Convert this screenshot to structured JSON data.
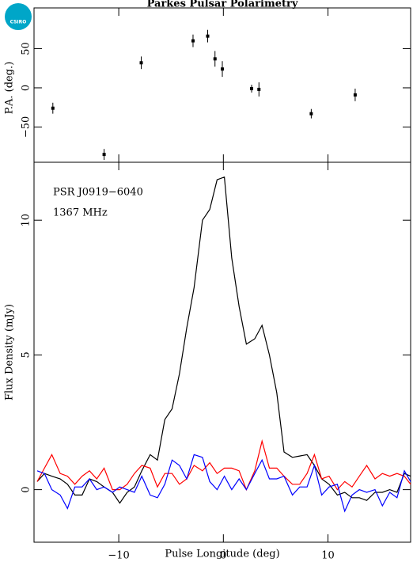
{
  "logo": "CSIRO",
  "chart_data": [
    {
      "type": "scatter",
      "title": "Parkes Pulsar Polarimetry",
      "ylabel": "P.A. (deg.)",
      "x": [
        -16.3,
        -11.4,
        -7.85,
        -2.9,
        -1.5,
        -0.8,
        -0.1,
        2.7,
        3.4,
        8.4,
        12.6
      ],
      "values": [
        -26,
        -85,
        32,
        60,
        66,
        37,
        24,
        -1,
        -2,
        -33,
        -9
      ],
      "yerr": [
        7,
        7,
        8,
        8,
        8,
        10,
        10,
        5,
        9,
        6,
        8
      ],
      "color": "#000000",
      "xlim": [
        -18.1,
        17.9
      ],
      "xticks": [
        -10,
        0,
        10
      ],
      "ylim": [
        -95,
        102
      ],
      "yticks": [
        {
          "value": -50,
          "label": "−50"
        },
        0,
        50
      ]
    },
    {
      "type": "line",
      "xlabel": "Pulse Longitude (deg)",
      "ylabel": "Flux Density (mJy)",
      "annotations": [
        "PSR J0919−6040",
        "1367 MHz"
      ],
      "x": [
        -17.8,
        -17.1,
        -16.4,
        -15.6,
        -14.9,
        -14.2,
        -13.5,
        -12.8,
        -12.1,
        -11.4,
        -10.6,
        -9.9,
        -9.2,
        -8.5,
        -7.8,
        -7.0,
        -6.3,
        -5.6,
        -4.9,
        -4.2,
        -3.5,
        -2.8,
        -2.0,
        -1.3,
        -0.6,
        0.1,
        0.8,
        1.5,
        2.2,
        3.0,
        3.7,
        4.4,
        5.1,
        5.8,
        6.6,
        7.3,
        8.0,
        8.7,
        9.4,
        10.1,
        10.9,
        11.6,
        12.3,
        13.0,
        13.7,
        14.5,
        15.2,
        15.9,
        16.6,
        17.3,
        17.9
      ],
      "series": [
        {
          "color": "#000000",
          "values": [
            0.3,
            0.6,
            0.5,
            0.4,
            0.2,
            -0.2,
            -0.2,
            0.4,
            0.3,
            0.1,
            -0.1,
            -0.5,
            -0.1,
            0.1,
            0.7,
            1.3,
            1.1,
            2.6,
            3.0,
            4.3,
            6.0,
            7.5,
            10.0,
            10.4,
            11.5,
            11.6,
            8.6,
            6.8,
            5.4,
            5.6,
            6.1,
            5.0,
            3.6,
            1.4,
            1.2,
            1.25,
            1.3,
            0.9,
            0.4,
            0.2,
            -0.2,
            -0.1,
            -0.3,
            -0.3,
            -0.4,
            -0.1,
            -0.1,
            0.0,
            -0.1,
            0.6,
            0.5
          ]
        },
        {
          "color": "#ff0000",
          "values": [
            0.3,
            0.8,
            1.3,
            0.6,
            0.5,
            0.2,
            0.5,
            0.7,
            0.4,
            0.8,
            0.0,
            0.0,
            0.2,
            0.6,
            0.9,
            0.8,
            0.1,
            0.6,
            0.6,
            0.2,
            0.4,
            0.9,
            0.7,
            1.0,
            0.6,
            0.8,
            0.8,
            0.7,
            0.0,
            0.7,
            1.8,
            0.8,
            0.8,
            0.5,
            0.2,
            0.2,
            0.6,
            1.3,
            0.4,
            0.5,
            0.0,
            0.3,
            0.1,
            0.5,
            0.9,
            0.4,
            0.6,
            0.5,
            0.6,
            0.5,
            0.2
          ]
        },
        {
          "color": "#0000ff",
          "values": [
            0.7,
            0.6,
            0.0,
            -0.2,
            -0.7,
            0.1,
            0.1,
            0.4,
            0.0,
            0.1,
            -0.1,
            0.1,
            0.0,
            -0.1,
            0.5,
            -0.2,
            -0.3,
            0.2,
            1.1,
            0.9,
            0.4,
            1.3,
            1.2,
            0.3,
            0.0,
            0.5,
            0.0,
            0.4,
            0.0,
            0.6,
            1.1,
            0.4,
            0.4,
            0.5,
            -0.2,
            0.1,
            0.1,
            0.9,
            -0.2,
            0.1,
            0.2,
            -0.8,
            -0.2,
            0.0,
            -0.1,
            0.0,
            -0.6,
            -0.1,
            -0.3,
            0.7,
            0.3
          ]
        }
      ],
      "xlim": [
        -18.1,
        17.9
      ],
      "xticks": [
        {
          "value": -10,
          "label": "−10"
        },
        0,
        10
      ],
      "ylim": [
        -1.95,
        12.15
      ],
      "yticks": [
        0,
        5,
        10
      ]
    }
  ]
}
